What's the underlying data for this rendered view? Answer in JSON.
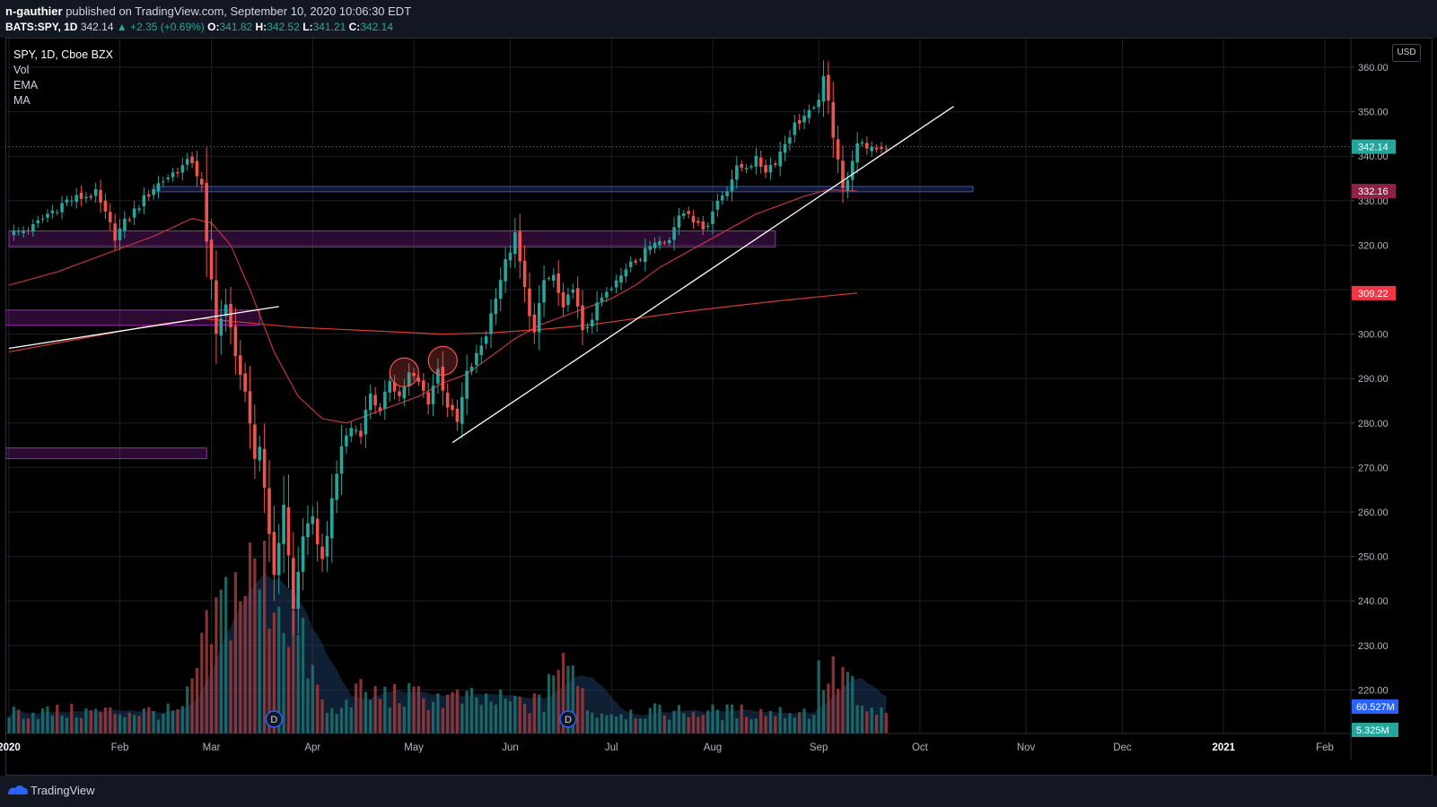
{
  "header": {
    "author": "n-gauthier",
    "published_text": "published on TradingView.com, September 10, 2020 10:06:30 EDT",
    "symbol": "BATS:SPY, 1D",
    "last": "342.14",
    "change": "▲ +2.35 (+0.69%)",
    "o_label": "O:",
    "o_val": "341.82",
    "h_label": "H:",
    "h_val": "342.52",
    "l_label": "L:",
    "l_val": "341.21",
    "c_label": "C:",
    "c_val": "342.14"
  },
  "legend": {
    "title": "SPY, 1D, Cboe BZX",
    "items": [
      "Vol",
      "EMA",
      "MA"
    ]
  },
  "currency": "USD",
  "footer": {
    "brand": "TradingView",
    "logo_icon": "tradingview-logo-icon"
  },
  "colors": {
    "up": "#26a69a",
    "down": "#ef5350",
    "bg": "#000000",
    "grid": "#1c1f26",
    "ema": "#c2343f",
    "ma": "#d63b2f",
    "zone_blue": "#3f51b5",
    "zone_purple": "#9c27b0",
    "badge_last": "#26a69a",
    "badge_ema": "#8e2147",
    "badge_ma": "#f23645",
    "badge_vol": "#2962ff"
  },
  "chart_data": {
    "type": "candlestick",
    "title": "SPY, 1D, Cboe BZX",
    "ylim": [
      214,
      364
    ],
    "y_ticks": [
      220,
      230,
      240,
      250,
      260,
      270,
      280,
      290,
      300,
      310,
      320,
      330,
      340,
      350,
      360
    ],
    "y_tick_labels": [
      "220.00",
      "230.00",
      "240.00",
      "250.00",
      "260.00",
      "270.00",
      "280.00",
      "290.00",
      "300.00",
      "310.00",
      "320.00",
      "330.00",
      "340.00",
      "350.00",
      "360.00"
    ],
    "x_labels": [
      "2020",
      "Feb",
      "Mar",
      "Apr",
      "May",
      "Jun",
      "Jul",
      "Aug",
      "Sep",
      "Oct",
      "Nov",
      "Dec",
      "2021",
      "Feb"
    ],
    "x_label_days": [
      0,
      23,
      42,
      63,
      84,
      104,
      125,
      146,
      168,
      189,
      211,
      231,
      252,
      273
    ],
    "session_days": 182,
    "price_path": [
      [
        0,
        322.4
      ],
      [
        5,
        324
      ],
      [
        8,
        327
      ],
      [
        12,
        330
      ],
      [
        18,
        331.5
      ],
      [
        22,
        322
      ],
      [
        24,
        325
      ],
      [
        30,
        333
      ],
      [
        35,
        337
      ],
      [
        38,
        339
      ],
      [
        40,
        333
      ],
      [
        41,
        320
      ],
      [
        42,
        312
      ],
      [
        43,
        301
      ],
      [
        45,
        306
      ],
      [
        47,
        296
      ],
      [
        49,
        286
      ],
      [
        51,
        272
      ],
      [
        52,
        275
      ],
      [
        54,
        256
      ],
      [
        55,
        245
      ],
      [
        57,
        262
      ],
      [
        59,
        238
      ],
      [
        61,
        255
      ],
      [
        63,
        258
      ],
      [
        65,
        249
      ],
      [
        67,
        262
      ],
      [
        69,
        275
      ],
      [
        71,
        279
      ],
      [
        73,
        278
      ],
      [
        75,
        287
      ],
      [
        77,
        282
      ],
      [
        79,
        290
      ],
      [
        81,
        286
      ],
      [
        83,
        291
      ],
      [
        85,
        289
      ],
      [
        87,
        285
      ],
      [
        89,
        292
      ],
      [
        91,
        284
      ],
      [
        93,
        280
      ],
      [
        95,
        291
      ],
      [
        97,
        295
      ],
      [
        99,
        300
      ],
      [
        101,
        309
      ],
      [
        103,
        316
      ],
      [
        105,
        322
      ],
      [
        107,
        310
      ],
      [
        109,
        300
      ],
      [
        111,
        312
      ],
      [
        113,
        313
      ],
      [
        115,
        305
      ],
      [
        117,
        311
      ],
      [
        119,
        300
      ],
      [
        121,
        304
      ],
      [
        123,
        308
      ],
      [
        125,
        310
      ],
      [
        127,
        313
      ],
      [
        129,
        317
      ],
      [
        131,
        317
      ],
      [
        133,
        320
      ],
      [
        135,
        322
      ],
      [
        137,
        321
      ],
      [
        139,
        327
      ],
      [
        141,
        328
      ],
      [
        143,
        324
      ],
      [
        145,
        325
      ],
      [
        147,
        330
      ],
      [
        149,
        333
      ],
      [
        151,
        337
      ],
      [
        153,
        338
      ],
      [
        155,
        339
      ],
      [
        157,
        337
      ],
      [
        159,
        339
      ],
      [
        161,
        343
      ],
      [
        163,
        347
      ],
      [
        165,
        349
      ],
      [
        167,
        350
      ],
      [
        169,
        357
      ],
      [
        170,
        352
      ],
      [
        171,
        345
      ],
      [
        172,
        340
      ],
      [
        173,
        333
      ],
      [
        174,
        334
      ],
      [
        175,
        339.8
      ],
      [
        176,
        342.14
      ]
    ],
    "ema_path": [
      [
        0,
        311
      ],
      [
        10,
        314
      ],
      [
        20,
        318
      ],
      [
        30,
        322
      ],
      [
        38,
        326
      ],
      [
        42,
        325
      ],
      [
        46,
        320
      ],
      [
        50,
        310
      ],
      [
        55,
        296
      ],
      [
        60,
        286
      ],
      [
        65,
        281
      ],
      [
        70,
        280
      ],
      [
        75,
        282
      ],
      [
        80,
        284
      ],
      [
        85,
        286
      ],
      [
        90,
        289
      ],
      [
        95,
        291
      ],
      [
        100,
        295
      ],
      [
        105,
        299
      ],
      [
        110,
        302
      ],
      [
        115,
        304
      ],
      [
        120,
        306
      ],
      [
        125,
        308
      ],
      [
        130,
        311
      ],
      [
        135,
        315
      ],
      [
        140,
        318
      ],
      [
        145,
        321
      ],
      [
        150,
        324
      ],
      [
        155,
        327
      ],
      [
        160,
        329
      ],
      [
        165,
        331
      ],
      [
        170,
        332.5
      ],
      [
        176,
        332.16
      ]
    ],
    "ma_path": [
      [
        0,
        296
      ],
      [
        10,
        298
      ],
      [
        20,
        300
      ],
      [
        30,
        302
      ],
      [
        40,
        303.5
      ],
      [
        50,
        302.5
      ],
      [
        60,
        301.5
      ],
      [
        70,
        301
      ],
      [
        80,
        300.5
      ],
      [
        90,
        300
      ],
      [
        100,
        300.3
      ],
      [
        110,
        301
      ],
      [
        120,
        302
      ],
      [
        130,
        303.5
      ],
      [
        140,
        305
      ],
      [
        150,
        306.3
      ],
      [
        160,
        307.5
      ],
      [
        170,
        308.6
      ],
      [
        176,
        309.22
      ]
    ],
    "trendlines": [
      {
        "from": [
          0,
          296.8
        ],
        "to": [
          56,
          306.2
        ]
      },
      {
        "from": [
          92,
          275.6
        ],
        "to": [
          196,
          351.2
        ]
      }
    ],
    "zones": [
      {
        "color": "blue",
        "x_range": [
          30,
          200
        ],
        "y_range": [
          332,
          333.2
        ]
      },
      {
        "color": "purple",
        "x_range": [
          0,
          159
        ],
        "y_range": [
          319.6,
          323.2
        ]
      },
      {
        "color": "purple",
        "x_range": [
          -2,
          52
        ],
        "y_range": [
          302,
          305.4
        ]
      },
      {
        "color": "purple",
        "x_range": [
          -2,
          41
        ],
        "y_range": [
          272,
          274.4
        ]
      }
    ],
    "circles": [
      {
        "day": 82,
        "price": 291.4
      },
      {
        "day": 90,
        "price": 294
      }
    ],
    "dividend_markers": [
      {
        "day": 55,
        "label": "D"
      },
      {
        "day": 116,
        "label": "D"
      }
    ],
    "price_badges": [
      {
        "value": "342.14",
        "price": 342.14,
        "role": "last"
      },
      {
        "value": "332.16",
        "price": 332.16,
        "role": "ema"
      },
      {
        "value": "309.22",
        "price": 309.22,
        "role": "ma"
      }
    ],
    "volume_badges": [
      {
        "value": "60.527M",
        "role": "vol_ma"
      },
      {
        "value": "5.325M",
        "role": "vol"
      }
    ]
  }
}
